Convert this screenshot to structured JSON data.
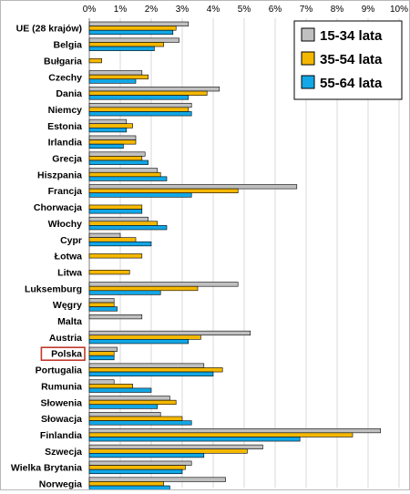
{
  "chart_data": {
    "type": "bar",
    "orientation": "horizontal",
    "x_ticks": [
      "0%",
      "1%",
      "2%",
      "3%",
      "4%",
      "5%",
      "6%",
      "7%",
      "8%",
      "9%",
      "10%"
    ],
    "xlim": [
      0,
      10
    ],
    "grid": true,
    "legend_position": "top-right",
    "highlighted_category": "Polska",
    "categories": [
      "UE (28 krajów)",
      "Belgia",
      "Bułgaria",
      "Czechy",
      "Dania",
      "Niemcy",
      "Estonia",
      "Irlandia",
      "Grecja",
      "Hiszpania",
      "Francja",
      "Chorwacja",
      "Włochy",
      "Cypr",
      "Łotwa",
      "Litwa",
      "Luksemburg",
      "Węgry",
      "Malta",
      "Austria",
      "Polska",
      "Portugalia",
      "Rumunia",
      "Słowenia",
      "Słowacja",
      "Finlandia",
      "Szwecja",
      "Wielka Brytania",
      "Norwegia"
    ],
    "series": [
      {
        "name": "15-34 lata",
        "color": "#c0c0c0",
        "values": [
          3.2,
          2.9,
          null,
          1.7,
          4.2,
          3.3,
          1.2,
          1.5,
          1.8,
          2.2,
          6.7,
          null,
          1.9,
          1.0,
          null,
          null,
          4.8,
          0.8,
          1.7,
          5.2,
          0.9,
          3.7,
          0.8,
          2.6,
          2.3,
          9.4,
          5.6,
          3.3,
          4.4
        ]
      },
      {
        "name": "35-54 lata",
        "color": "#f5b800",
        "values": [
          2.8,
          2.4,
          0.4,
          1.9,
          3.8,
          3.2,
          1.4,
          1.5,
          1.7,
          2.3,
          4.8,
          1.7,
          2.2,
          1.5,
          1.7,
          1.3,
          3.5,
          0.8,
          null,
          3.6,
          0.8,
          4.3,
          1.4,
          2.8,
          3.0,
          8.5,
          5.1,
          3.1,
          2.4
        ]
      },
      {
        "name": "55-64 lata",
        "color": "#12a7e6",
        "values": [
          2.7,
          2.1,
          null,
          1.5,
          3.2,
          3.3,
          1.2,
          1.1,
          1.9,
          2.5,
          3.3,
          1.7,
          2.5,
          2.0,
          null,
          null,
          2.3,
          0.9,
          null,
          3.2,
          0.8,
          4.0,
          2.0,
          2.2,
          3.3,
          6.8,
          3.7,
          3.0,
          2.6
        ]
      }
    ]
  }
}
